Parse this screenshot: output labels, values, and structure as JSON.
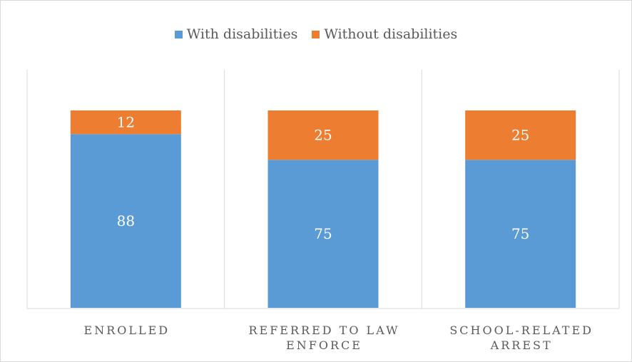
{
  "chart_data": {
    "type": "bar",
    "stacked": true,
    "categories": [
      [
        "ENROLLED"
      ],
      [
        "REFERRED TO LAW",
        "ENFORCE"
      ],
      [
        "SCHOOL-RELATED",
        "ARREST"
      ]
    ],
    "series": [
      {
        "name": "With disabilities",
        "values": [
          88,
          75,
          75
        ],
        "color": "#5B9BD5"
      },
      {
        "name": "Without disabilities",
        "values": [
          12,
          25,
          25
        ],
        "color": "#ED7D31"
      }
    ],
    "ylim": [
      0,
      100
    ],
    "title": "",
    "xlabel": "",
    "ylabel": "",
    "legend_position": "top",
    "gridlines": "vertical category separators",
    "data_labels": true
  }
}
